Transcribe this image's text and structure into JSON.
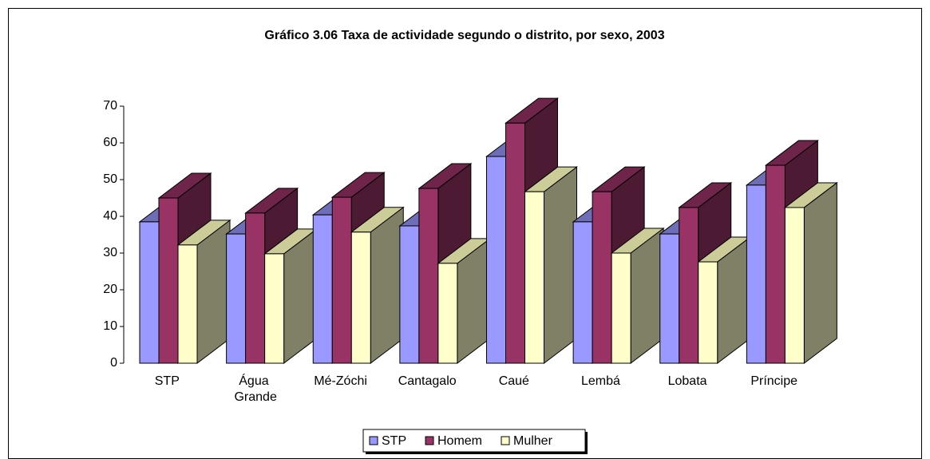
{
  "chart_data": {
    "type": "bar3d",
    "title": "Gráfico 3.06 Taxa de actividade segundo o distrito, por sexo, 2003",
    "categories": [
      "STP",
      "Água Grande",
      "Mé-Zóchi",
      "Cantagalo",
      "Caué",
      "Lembá",
      "Lobata",
      "Príncipe"
    ],
    "series": [
      {
        "name": "STP",
        "color": "#9999ff",
        "values": [
          38.5,
          35.2,
          40.4,
          37.4,
          56.3,
          38.5,
          35.2,
          48.5
        ]
      },
      {
        "name": "Homem",
        "color": "#993366",
        "values": [
          45,
          40.9,
          45.2,
          47.6,
          65.4,
          46.7,
          42.4,
          53.9
        ]
      },
      {
        "name": "Mulher",
        "color": "#ffffcc",
        "values": [
          32.2,
          29.8,
          35.7,
          27.2,
          46.7,
          30,
          27.6,
          42.4
        ]
      }
    ],
    "ylim": [
      0,
      70
    ],
    "yticks": [
      0,
      10,
      20,
      30,
      40,
      50,
      60,
      70
    ],
    "legend": "bottom"
  }
}
